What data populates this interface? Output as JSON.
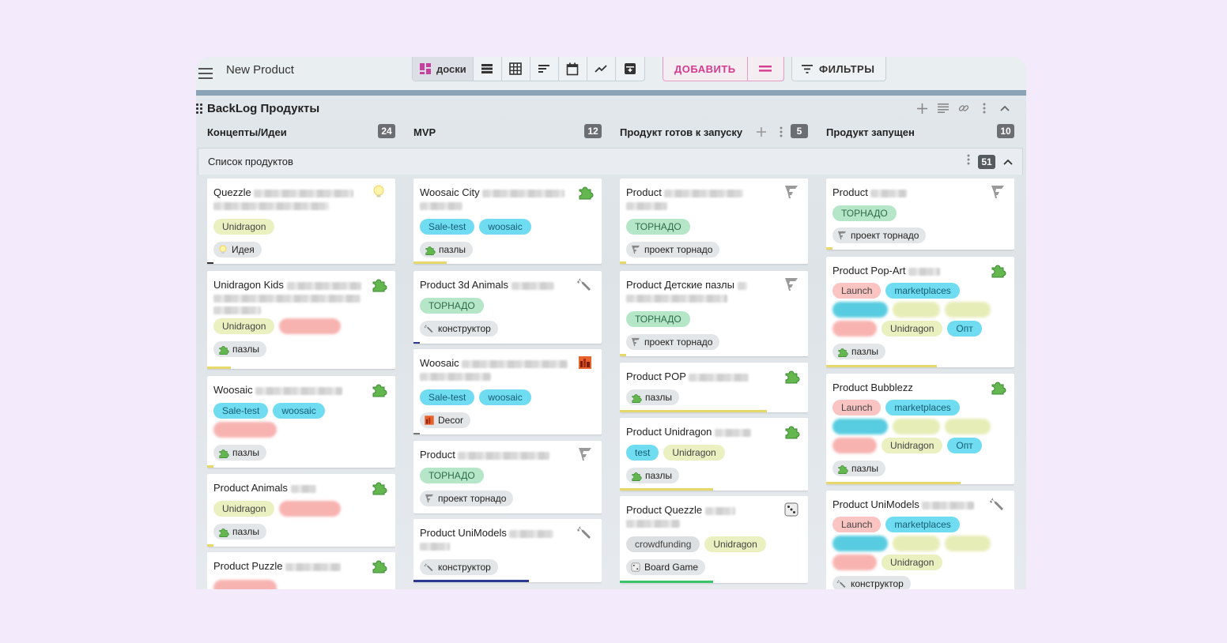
{
  "app": {
    "title": "New Product"
  },
  "views": [
    {
      "label": "доски",
      "icon": "boards-icon",
      "active": true
    },
    {
      "icon": "list-icon"
    },
    {
      "icon": "table-icon"
    },
    {
      "icon": "gantt-icon"
    },
    {
      "icon": "calendar-icon"
    },
    {
      "icon": "chart-icon"
    },
    {
      "icon": "archive-icon"
    }
  ],
  "add": {
    "label": "ДОБАВИТЬ",
    "color": "#d63b8f"
  },
  "filters": {
    "label": "ФИЛЬТРЫ"
  },
  "board": {
    "title": "BackLog Продукты"
  },
  "columns": [
    {
      "title": "Концепты/Идеи",
      "count": "24"
    },
    {
      "title": "MVP",
      "count": "12"
    },
    {
      "title": "Продукт готов к запуску",
      "count": "5"
    },
    {
      "title": "Продукт запущен",
      "count": "10"
    }
  ],
  "swimlane": {
    "title": "Список продуктов",
    "count": "51"
  },
  "cards": {
    "c1": [
      {
        "title": "Quezzle",
        "tags": [
          "Unidragon"
        ],
        "chip": "Идея"
      },
      {
        "title": "Unidragon Kids",
        "tags": [
          "Unidragon"
        ],
        "chip": "пазлы"
      },
      {
        "title": "Woosaic",
        "tags": [
          "Sale-test",
          "woosaic"
        ],
        "chip": "пазлы"
      },
      {
        "title": "Product Animals",
        "tags": [
          "Unidragon"
        ],
        "chip": "пазлы"
      },
      {
        "title": "Product Puzzle"
      }
    ],
    "c2": [
      {
        "title": "Woosaic City",
        "tags": [
          "Sale-test",
          "woosaic"
        ],
        "chip": "пазлы"
      },
      {
        "title": "Product 3d Animals",
        "tags": [
          "ТОРНАДО"
        ],
        "chip": "конструктор"
      },
      {
        "title": "Woosaic",
        "tags": [
          "Sale-test",
          "woosaic"
        ],
        "chip": "Decor"
      },
      {
        "title": "Product",
        "tags": [
          "ТОРНАДО"
        ],
        "chip": "проект торнадо"
      },
      {
        "title": "Product UniModels",
        "chip": "конструктор"
      }
    ],
    "c3": [
      {
        "title": "Product",
        "tags": [
          "ТОРНАДО"
        ],
        "chip": "проект торнадо"
      },
      {
        "title": "Product Детские пазлы",
        "tags": [
          "ТОРНАДО"
        ],
        "chip": "проект торнадо"
      },
      {
        "title": "Product POP",
        "chip": "пазлы"
      },
      {
        "title": "Product Unidragon",
        "tags": [
          "test",
          "Unidragon"
        ],
        "chip": "пазлы"
      },
      {
        "title": "Product Quezzle",
        "tags": [
          "crowdfunding",
          "Unidragon"
        ],
        "chip": "Board Game"
      }
    ],
    "c4": [
      {
        "title": "Product",
        "tags": [
          "ТОРНАДО"
        ],
        "chip": "проект торнадо"
      },
      {
        "title": "Product Pop-Art",
        "tags": [
          "Launch",
          "marketplaces",
          "Unidragon",
          "Опт"
        ],
        "chip": "пазлы"
      },
      {
        "title": "Product Bubblezz",
        "tags": [
          "Launch",
          "marketplaces",
          "Unidragon",
          "Опт"
        ],
        "chip": "пазлы"
      },
      {
        "title": "Product UniModels",
        "tags": [
          "Launch",
          "marketplaces",
          "Unidragon"
        ],
        "chip": "конструктор"
      }
    ]
  }
}
